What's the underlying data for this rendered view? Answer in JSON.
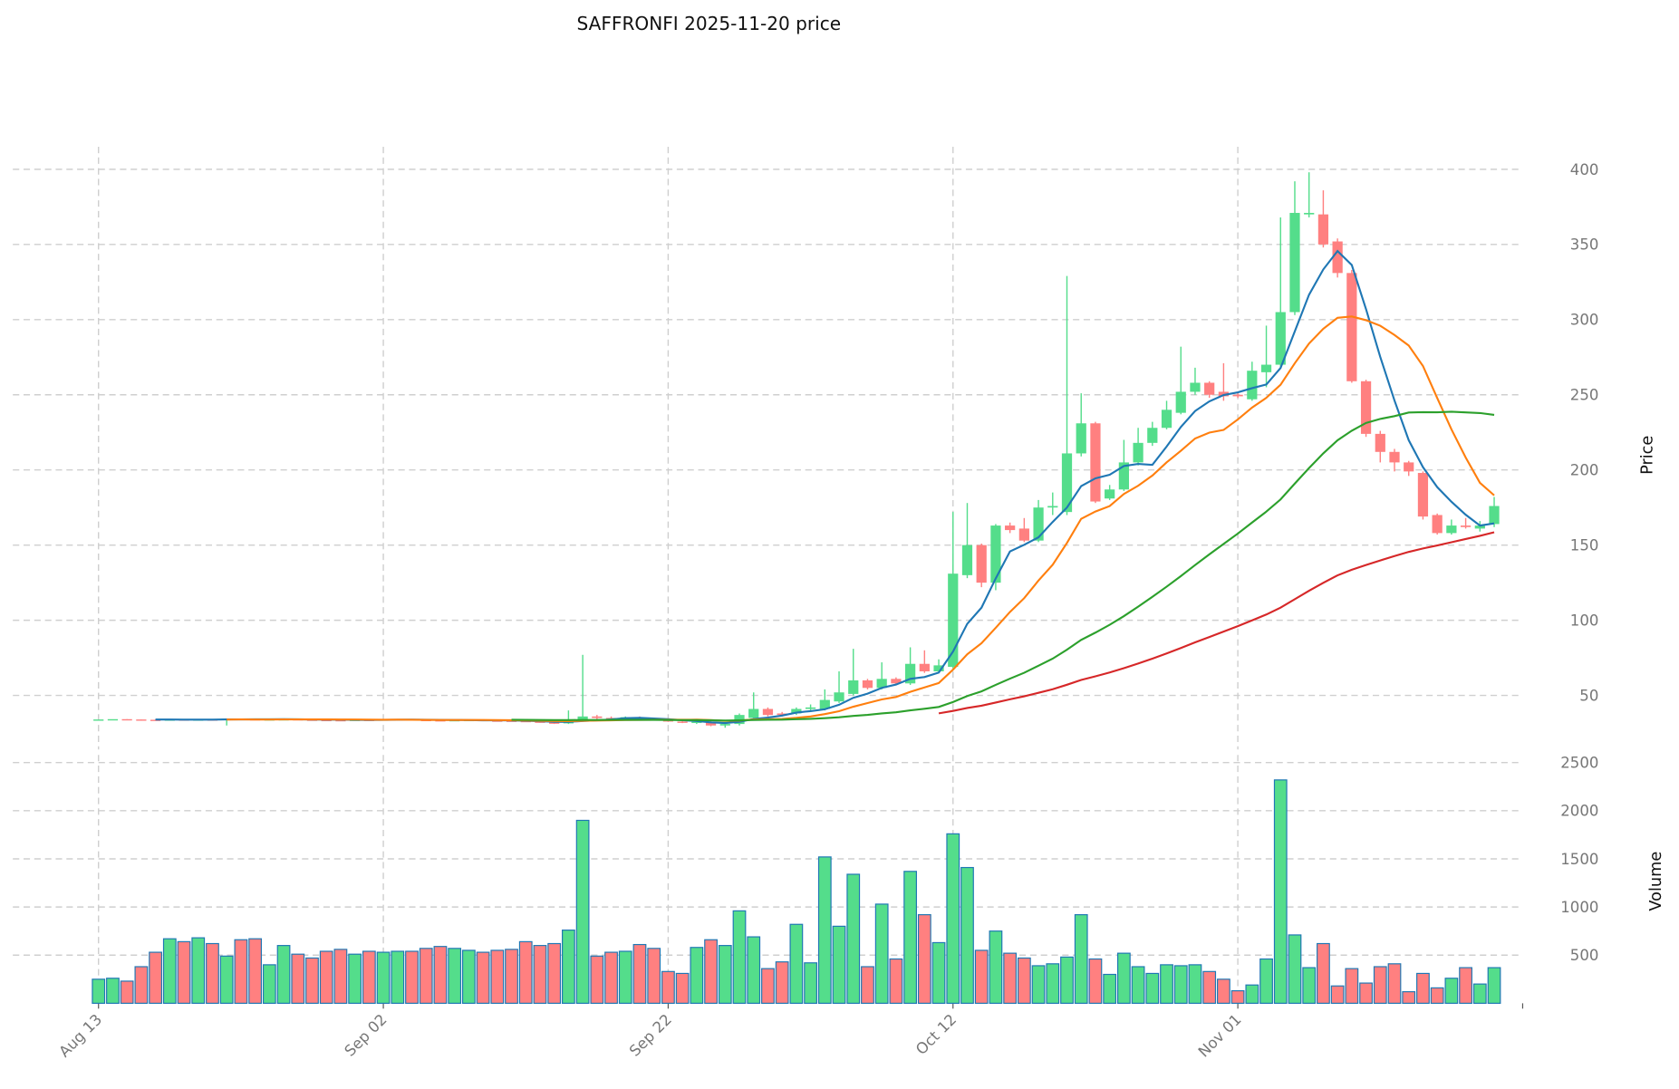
{
  "chart_data": {
    "type": "candlestick",
    "title": "SAFFRONFI  2025-11-20  price",
    "ylabel_price": "Price",
    "ylabel_volume": "Volume",
    "price_ylim": [
      14,
      415
    ],
    "price_ticks": [
      50,
      100,
      150,
      200,
      250,
      300,
      350,
      400
    ],
    "volume_ylim": [
      0,
      2580
    ],
    "volume_ticks": [
      500,
      1000,
      1500,
      2000,
      2500
    ],
    "x_ticks": [
      {
        "index": 0,
        "label": "Aug 13"
      },
      {
        "index": 20,
        "label": "Sep 02"
      },
      {
        "index": 40,
        "label": "Sep 22"
      },
      {
        "index": 60,
        "label": "Oct 12"
      },
      {
        "index": 80,
        "label": "Nov 01"
      }
    ],
    "grid": true,
    "colors": {
      "up": "#54dd8b",
      "down": "#ff8080",
      "volume_edge": "#1f77b4",
      "grid": "#cfcfcf"
    },
    "moving_averages": [
      {
        "period": 5,
        "color": "#1f77b4"
      },
      {
        "period": 10,
        "color": "#ff7f0e"
      },
      {
        "period": 30,
        "color": "#2ca02c"
      },
      {
        "period": 60,
        "color": "#d62728"
      }
    ],
    "ohlc": [
      [
        34,
        34,
        34,
        34
      ],
      [
        34,
        34,
        34,
        34.2
      ],
      [
        34.2,
        34.2,
        34,
        34
      ],
      [
        34,
        34,
        33.8,
        33.8
      ],
      [
        33.8,
        34,
        33.6,
        33.7
      ],
      [
        33.7,
        34.2,
        33.5,
        34
      ],
      [
        34,
        34.1,
        33.6,
        33.8
      ],
      [
        33.8,
        34.2,
        33.6,
        34
      ],
      [
        34,
        34.1,
        33.6,
        33.7
      ],
      [
        33.7,
        34.6,
        30,
        34.5
      ],
      [
        34.5,
        34.6,
        34,
        34.2
      ],
      [
        34.2,
        34.3,
        33.8,
        33.9
      ],
      [
        33.9,
        34.3,
        33.7,
        34.1
      ],
      [
        34.1,
        34.4,
        33.8,
        34.2
      ],
      [
        34.2,
        34.3,
        33.8,
        33.9
      ],
      [
        33.9,
        34,
        33.6,
        33.7
      ],
      [
        33.7,
        33.9,
        33.4,
        33.6
      ],
      [
        33.6,
        33.8,
        33.3,
        33.5
      ],
      [
        33.5,
        34,
        33.3,
        33.8
      ],
      [
        33.8,
        34,
        33.5,
        33.6
      ],
      [
        33.6,
        34.2,
        33.4,
        34
      ],
      [
        34,
        34.3,
        33.8,
        34.1
      ],
      [
        34.1,
        34.2,
        33.6,
        33.7
      ],
      [
        33.7,
        33.9,
        33.3,
        33.5
      ],
      [
        33.5,
        33.7,
        33.1,
        33.3
      ],
      [
        33.3,
        33.8,
        33.1,
        33.6
      ],
      [
        33.6,
        33.9,
        33.3,
        33.7
      ],
      [
        33.7,
        33.8,
        33.2,
        33.3
      ],
      [
        33.3,
        33.5,
        33,
        33.2
      ],
      [
        33.2,
        33.4,
        32.8,
        33
      ],
      [
        33,
        33.2,
        32.4,
        32.6
      ],
      [
        32.6,
        32.8,
        31.8,
        32
      ],
      [
        32,
        32.3,
        31,
        31.4
      ],
      [
        31.4,
        40,
        31,
        33
      ],
      [
        33,
        77,
        32.5,
        36
      ],
      [
        36,
        37,
        34,
        35
      ],
      [
        35,
        36,
        34,
        34.8
      ],
      [
        34.8,
        36,
        34.4,
        35.5
      ],
      [
        35.5,
        36,
        34,
        34.2
      ],
      [
        34.2,
        34.5,
        33.4,
        33.6
      ],
      [
        33.6,
        34,
        32.4,
        32.6
      ],
      [
        32.6,
        33,
        31.6,
        31.8
      ],
      [
        31.8,
        33,
        31,
        32.5
      ],
      [
        32.5,
        33,
        29.5,
        30
      ],
      [
        30,
        32,
        28.5,
        31
      ],
      [
        31,
        38,
        30,
        37
      ],
      [
        35,
        52,
        34,
        41
      ],
      [
        41,
        42,
        36,
        37
      ],
      [
        38,
        39,
        36,
        37
      ],
      [
        38,
        42,
        37,
        41
      ],
      [
        41,
        44,
        40,
        42
      ],
      [
        41,
        54,
        40,
        47
      ],
      [
        46,
        66,
        45,
        52
      ],
      [
        51,
        81,
        50,
        60
      ],
      [
        60,
        61,
        54,
        55
      ],
      [
        55,
        72,
        54,
        61
      ],
      [
        61,
        62,
        57,
        58
      ],
      [
        58,
        82,
        57,
        71
      ],
      [
        71,
        80,
        65,
        66
      ],
      [
        66,
        74,
        65,
        70
      ],
      [
        69,
        172,
        68,
        131
      ],
      [
        130,
        178,
        128,
        150
      ],
      [
        150,
        151,
        122,
        125
      ],
      [
        125,
        164,
        120,
        163
      ],
      [
        163,
        165,
        158,
        160
      ],
      [
        161,
        168,
        152,
        153
      ],
      [
        153,
        180,
        152,
        175
      ],
      [
        175,
        185,
        170,
        176
      ],
      [
        172,
        329,
        170,
        211
      ],
      [
        211,
        251,
        209,
        231
      ],
      [
        231,
        232,
        178,
        179
      ],
      [
        181,
        190,
        180,
        187
      ],
      [
        187,
        220,
        186,
        205
      ],
      [
        205,
        228,
        203,
        218
      ],
      [
        218,
        232,
        216,
        228
      ],
      [
        228,
        246,
        227,
        240
      ],
      [
        238,
        282,
        237,
        252
      ],
      [
        252,
        268,
        250,
        258
      ],
      [
        258,
        259,
        248,
        250
      ],
      [
        252,
        271,
        246,
        249
      ],
      [
        250,
        252,
        248,
        249
      ],
      [
        247,
        272,
        246,
        266
      ],
      [
        265,
        296,
        255,
        270
      ],
      [
        270,
        368,
        268,
        305
      ],
      [
        305,
        392,
        303,
        371
      ],
      [
        370,
        398,
        368,
        371
      ],
      [
        370,
        386,
        348,
        350
      ],
      [
        352,
        354,
        328,
        331
      ],
      [
        331,
        333,
        258,
        259
      ],
      [
        259,
        260,
        222,
        224
      ],
      [
        224,
        226,
        205,
        212
      ],
      [
        212,
        214,
        199,
        205
      ],
      [
        205,
        206,
        196,
        199
      ],
      [
        198,
        199,
        167,
        169
      ],
      [
        170,
        171,
        157,
        158
      ],
      [
        158,
        167,
        157,
        163
      ],
      [
        163,
        168,
        161,
        162
      ],
      [
        161,
        166,
        159,
        163
      ],
      [
        164,
        182,
        162,
        176
      ]
    ],
    "volume": [
      250,
      260,
      230,
      380,
      530,
      670,
      640,
      680,
      620,
      490,
      660,
      670,
      400,
      600,
      510,
      470,
      540,
      560,
      510,
      540,
      530,
      540,
      540,
      570,
      590,
      570,
      550,
      530,
      550,
      560,
      640,
      600,
      620,
      760,
      1900,
      490,
      530,
      540,
      610,
      570,
      330,
      310,
      580,
      660,
      600,
      960,
      690,
      360,
      430,
      820,
      420,
      1520,
      800,
      1340,
      380,
      1030,
      460,
      1370,
      920,
      630,
      1760,
      1410,
      550,
      750,
      520,
      470,
      390,
      410,
      480,
      920,
      460,
      300,
      520,
      380,
      310,
      400,
      390,
      400,
      330,
      250,
      130,
      190,
      460,
      2320,
      710,
      370,
      620,
      180,
      360,
      210,
      380,
      410,
      120,
      310,
      160,
      260,
      370,
      200,
      370
    ]
  }
}
